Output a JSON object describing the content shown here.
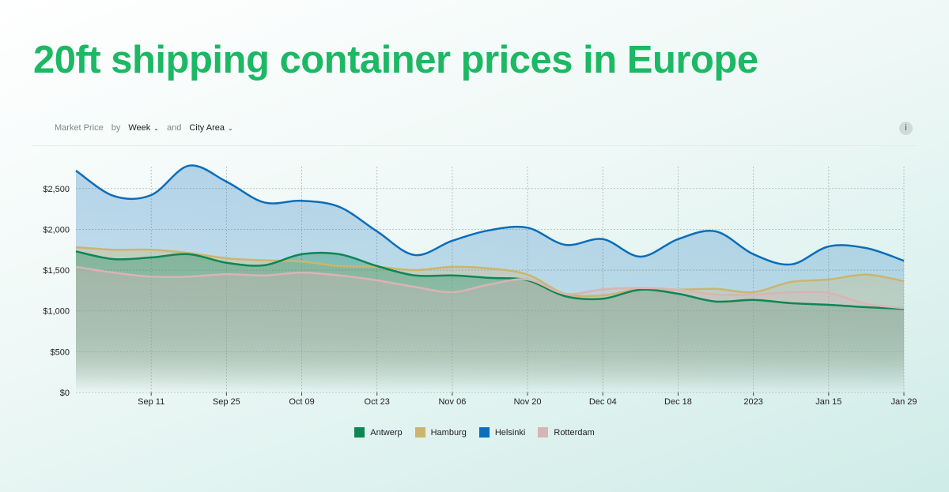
{
  "title": "20ft shipping container prices in Europe",
  "controls": {
    "metric": "Market Price",
    "by": "by",
    "period": "Week",
    "and": "and",
    "group": "City Area",
    "info_icon": "i"
  },
  "chart_data": {
    "type": "area",
    "x": [
      "Aug 28",
      "Sep 04",
      "Sep 11",
      "Sep 18",
      "Sep 25",
      "Oct 02",
      "Oct 09",
      "Oct 16",
      "Oct 23",
      "Oct 30",
      "Nov 06",
      "Nov 13",
      "Nov 20",
      "Nov 27",
      "Dec 04",
      "Dec 11",
      "Dec 18",
      "Dec 25",
      "Jan 01",
      "Jan 08",
      "Jan 15",
      "Jan 22",
      "Jan 29"
    ],
    "x_tick_labels": [
      {
        "index": 2,
        "label": "Sep 11"
      },
      {
        "index": 4,
        "label": "Sep 25"
      },
      {
        "index": 6,
        "label": "Oct 09"
      },
      {
        "index": 8,
        "label": "Oct 23"
      },
      {
        "index": 10,
        "label": "Nov 06"
      },
      {
        "index": 12,
        "label": "Nov 20"
      },
      {
        "index": 14,
        "label": "Dec 04"
      },
      {
        "index": 16,
        "label": "Dec 18"
      },
      {
        "index": 18,
        "label": "2023"
      },
      {
        "index": 20,
        "label": "Jan 15"
      },
      {
        "index": 22,
        "label": "Jan 29"
      }
    ],
    "y_ticks": [
      0,
      500,
      1000,
      1500,
      2000,
      2500
    ],
    "y_tick_labels": [
      "$0",
      "$500",
      "$1,000",
      "$1,500",
      "$2,000",
      "$2,500"
    ],
    "ylim": [
      0,
      2800
    ],
    "grid": true,
    "legend_position": "bottom",
    "series": [
      {
        "name": "Helsinki",
        "color": "#0b6dbb",
        "values": [
          2720,
          2410,
          2420,
          2780,
          2585,
          2330,
          2350,
          2275,
          1975,
          1685,
          1860,
          1990,
          2020,
          1810,
          1880,
          1665,
          1880,
          1975,
          1695,
          1570,
          1790,
          1770,
          1615
        ]
      },
      {
        "name": "Hamburg",
        "color": "#cbb56e",
        "values": [
          1780,
          1750,
          1750,
          1710,
          1645,
          1620,
          1605,
          1550,
          1540,
          1500,
          1540,
          1520,
          1445,
          1210,
          1190,
          1270,
          1260,
          1270,
          1230,
          1355,
          1385,
          1445,
          1365
        ]
      },
      {
        "name": "Antwerp",
        "color": "#0d8753",
        "values": [
          1730,
          1635,
          1655,
          1695,
          1590,
          1560,
          1695,
          1695,
          1550,
          1435,
          1435,
          1405,
          1375,
          1180,
          1150,
          1260,
          1210,
          1115,
          1135,
          1095,
          1075,
          1045,
          1025
        ]
      },
      {
        "name": "Rotterdam",
        "color": "#d8b4b4",
        "values": [
          1540,
          1470,
          1420,
          1420,
          1450,
          1435,
          1470,
          1435,
          1375,
          1295,
          1230,
          1325,
          1385,
          1210,
          1265,
          1280,
          1260,
          1200,
          1200,
          1230,
          1220,
          1085,
          1035
        ]
      }
    ],
    "legend": [
      "Antwerp",
      "Hamburg",
      "Helsinki",
      "Rotterdam"
    ]
  }
}
